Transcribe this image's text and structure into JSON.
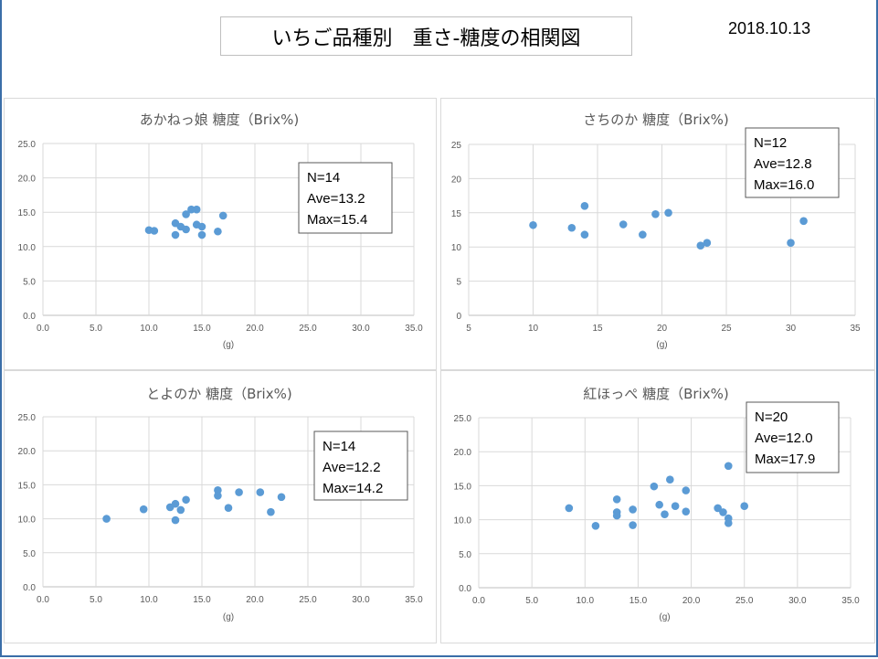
{
  "header": {
    "title": "いちご品種別　重さ-糖度の相関図",
    "date": "2018.10.13"
  },
  "colors": {
    "marker": "#5b9bd5",
    "grid": "#d9d9d9",
    "text": "#595959"
  },
  "chart_data": [
    {
      "type": "scatter",
      "title": "あかねっ娘 糖度（Brix%)",
      "xlabel": "(g)",
      "ylabel": "",
      "xlim": [
        0,
        35
      ],
      "ylim": [
        0,
        25
      ],
      "xticks": [
        "0.0",
        "5.0",
        "10.0",
        "15.0",
        "20.0",
        "25.0",
        "30.0",
        "35.0"
      ],
      "yticks": [
        "0.0",
        "5.0",
        "10.0",
        "15.0",
        "20.0",
        "25.0"
      ],
      "grid": true,
      "stats": [
        "N=14",
        "Ave=13.2",
        "Max=15.4"
      ],
      "points": [
        [
          10,
          12.4
        ],
        [
          10.5,
          12.3
        ],
        [
          12.5,
          13.4
        ],
        [
          12.5,
          11.7
        ],
        [
          13,
          12.9
        ],
        [
          13.5,
          12.5
        ],
        [
          13.5,
          14.7
        ],
        [
          14,
          15.4
        ],
        [
          14.5,
          15.4
        ],
        [
          14.5,
          13.2
        ],
        [
          15,
          12.9
        ],
        [
          15,
          11.7
        ],
        [
          16.5,
          12.2
        ],
        [
          17,
          14.5
        ]
      ]
    },
    {
      "type": "scatter",
      "title": "さちのか 糖度（Brix%)",
      "xlabel": "(g)",
      "ylabel": "",
      "xlim": [
        5,
        35
      ],
      "ylim": [
        0,
        25
      ],
      "xticks": [
        "5",
        "10",
        "15",
        "20",
        "25",
        "30",
        "35"
      ],
      "yticks": [
        "0",
        "5",
        "10",
        "15",
        "20",
        "25"
      ],
      "grid": true,
      "stats": [
        "N=12",
        "Ave=12.8",
        "Max=16.0"
      ],
      "points": [
        [
          10,
          13.2
        ],
        [
          13,
          12.8
        ],
        [
          14,
          16.0
        ],
        [
          14,
          11.8
        ],
        [
          17,
          13.3
        ],
        [
          18.5,
          11.8
        ],
        [
          19.5,
          14.8
        ],
        [
          20.5,
          15.0
        ],
        [
          23,
          10.2
        ],
        [
          23.5,
          10.6
        ],
        [
          30,
          10.6
        ],
        [
          31,
          13.8
        ]
      ]
    },
    {
      "type": "scatter",
      "title": "とよのか 糖度（Brix%)",
      "xlabel": "(g)",
      "ylabel": "",
      "xlim": [
        0,
        35
      ],
      "ylim": [
        0,
        25
      ],
      "xticks": [
        "0.0",
        "5.0",
        "10.0",
        "15.0",
        "20.0",
        "25.0",
        "30.0",
        "35.0"
      ],
      "yticks": [
        "0.0",
        "5.0",
        "10.0",
        "15.0",
        "20.0",
        "25.0"
      ],
      "grid": true,
      "stats": [
        "N=14",
        "Ave=12.2",
        "Max=14.2"
      ],
      "points": [
        [
          6,
          10.0
        ],
        [
          9.5,
          11.4
        ],
        [
          12,
          11.7
        ],
        [
          12.5,
          12.2
        ],
        [
          12.5,
          9.8
        ],
        [
          13,
          11.3
        ],
        [
          13.5,
          12.8
        ],
        [
          16.5,
          14.2
        ],
        [
          16.5,
          13.4
        ],
        [
          17.5,
          11.6
        ],
        [
          18.5,
          13.9
        ],
        [
          20.5,
          13.9
        ],
        [
          21.5,
          11.0
        ],
        [
          22.5,
          13.2
        ]
      ]
    },
    {
      "type": "scatter",
      "title": "紅ほっぺ 糖度（Brix%)",
      "xlabel": "(g)",
      "ylabel": "",
      "xlim": [
        0,
        35
      ],
      "ylim": [
        0,
        25
      ],
      "xticks": [
        "0.0",
        "5.0",
        "10.0",
        "15.0",
        "20.0",
        "25.0",
        "30.0",
        "35.0"
      ],
      "yticks": [
        "0.0",
        "5.0",
        "10.0",
        "15.0",
        "20.0",
        "25.0"
      ],
      "grid": true,
      "stats": [
        "N=20",
        "Ave=12.0",
        "Max=17.9"
      ],
      "points": [
        [
          8.5,
          11.7
        ],
        [
          11,
          9.1
        ],
        [
          13,
          13.0
        ],
        [
          13,
          11.1
        ],
        [
          13,
          10.6
        ],
        [
          14.5,
          11.5
        ],
        [
          14.5,
          9.2
        ],
        [
          16.5,
          14.9
        ],
        [
          17,
          12.2
        ],
        [
          17.5,
          10.8
        ],
        [
          18,
          15.9
        ],
        [
          18.5,
          12.0
        ],
        [
          19.5,
          14.3
        ],
        [
          19.5,
          11.2
        ],
        [
          22.5,
          11.7
        ],
        [
          23,
          11.1
        ],
        [
          23.5,
          17.9
        ],
        [
          23.5,
          10.2
        ],
        [
          23.5,
          9.5
        ],
        [
          25,
          12.0
        ]
      ]
    }
  ]
}
